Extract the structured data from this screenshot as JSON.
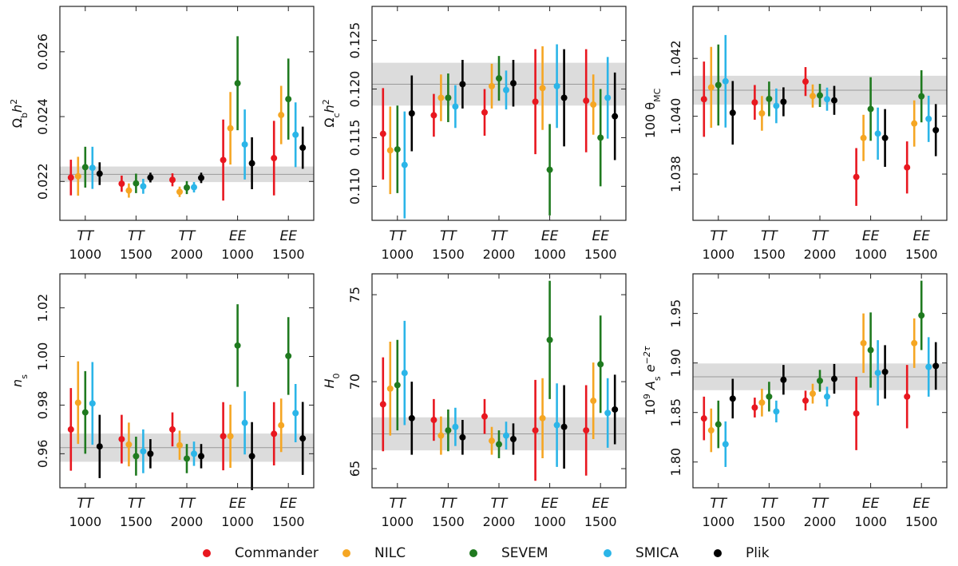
{
  "colors": {
    "Commander": "#e8171f",
    "NILC": "#f5a623",
    "SEVEM": "#1f7a1f",
    "SMICA": "#2bb5e8",
    "Plik": "#000000",
    "band": "#dcdcdc",
    "band_line": "#9a9a9a"
  },
  "legend": [
    "Commander",
    "NILC",
    "SEVEM",
    "SMICA",
    "Plik"
  ],
  "categories": [
    {
      "spec": "TT",
      "lmax": "1000"
    },
    {
      "spec": "TT",
      "lmax": "1500"
    },
    {
      "spec": "TT",
      "lmax": "2000"
    },
    {
      "spec": "EE",
      "lmax": "1000"
    },
    {
      "spec": "EE",
      "lmax": "1500"
    }
  ],
  "chart_data": [
    {
      "type": "scatter",
      "name": "omega-b",
      "ylabel_main": "Ω",
      "ylabel_sub": "b",
      "ylabel_rest": "h",
      "ylabel_sup": "2",
      "ylim": [
        0.0208,
        0.0274
      ],
      "yticks": [
        0.022,
        0.024,
        0.026
      ],
      "ytick_labels": [
        "0.022",
        "0.024",
        "0.026"
      ],
      "band": {
        "center": 0.02222,
        "half": 0.00024
      },
      "series": [
        {
          "name": "Commander",
          "values": [
            [
              0.02212,
              0.00055
            ],
            [
              0.02193,
              0.00025
            ],
            [
              0.02205,
              0.0002
            ],
            [
              0.02266,
              0.00125
            ],
            [
              0.02272,
              0.00115
            ]
          ]
        },
        {
          "name": "NILC",
          "values": [
            [
              0.02216,
              0.0006
            ],
            [
              0.02172,
              0.00022
            ],
            [
              0.02168,
              0.00016
            ],
            [
              0.02364,
              0.00112
            ],
            [
              0.02405,
              0.0009
            ]
          ]
        },
        {
          "name": "SEVEM",
          "values": [
            [
              0.02244,
              0.00063
            ],
            [
              0.02194,
              0.0003
            ],
            [
              0.02181,
              0.0002
            ],
            [
              0.02503,
              0.00145
            ],
            [
              0.02454,
              0.00125
            ]
          ]
        },
        {
          "name": "SMICA",
          "values": [
            [
              0.02242,
              0.00065
            ],
            [
              0.02185,
              0.00023
            ],
            [
              0.02182,
              0.00016
            ],
            [
              0.02314,
              0.00108
            ],
            [
              0.02344,
              0.001
            ]
          ]
        },
        {
          "name": "Plik",
          "values": [
            [
              0.02224,
              0.00035
            ],
            [
              0.02212,
              0.00015
            ],
            [
              0.02211,
              0.00016
            ],
            [
              0.02256,
              0.0008
            ],
            [
              0.02304,
              0.00065
            ]
          ]
        }
      ]
    },
    {
      "type": "scatter",
      "name": "omega-c",
      "ylabel_main": "Ω",
      "ylabel_sub": "c",
      "ylabel_rest": "h",
      "ylabel_sup": "2",
      "ylim": [
        0.1065,
        0.1285
      ],
      "yticks": [
        0.11,
        0.115,
        0.12,
        0.125
      ],
      "ytick_labels": [
        "0.110",
        "0.115",
        "0.120",
        "0.125"
      ],
      "band": {
        "center": 0.1205,
        "half": 0.0022
      },
      "series": [
        {
          "name": "Commander",
          "values": [
            [
              0.1154,
              0.0047
            ],
            [
              0.1173,
              0.0022
            ],
            [
              0.1176,
              0.0024
            ],
            [
              0.1187,
              0.0054
            ],
            [
              0.1188,
              0.0053
            ]
          ]
        },
        {
          "name": "NILC",
          "values": [
            [
              0.1137,
              0.0045
            ],
            [
              0.1191,
              0.0024
            ],
            [
              0.1203,
              0.0023
            ],
            [
              0.1201,
              0.0043
            ],
            [
              0.1184,
              0.0031
            ]
          ]
        },
        {
          "name": "SEVEM",
          "values": [
            [
              0.1138,
              0.0045
            ],
            [
              0.1191,
              0.0025
            ],
            [
              0.1211,
              0.0023
            ],
            [
              0.1117,
              0.0047
            ],
            [
              0.115,
              0.005
            ]
          ]
        },
        {
          "name": "SMICA",
          "values": [
            [
              0.1122,
              0.0055
            ],
            [
              0.1182,
              0.0022
            ],
            [
              0.1199,
              0.002
            ],
            [
              0.1203,
              0.0043
            ],
            [
              0.1191,
              0.0042
            ]
          ]
        },
        {
          "name": "Plik",
          "values": [
            [
              0.1175,
              0.0039
            ],
            [
              0.1205,
              0.0025
            ],
            [
              0.1206,
              0.0024
            ],
            [
              0.1191,
              0.005
            ],
            [
              0.1172,
              0.0045
            ]
          ]
        }
      ]
    },
    {
      "type": "scatter",
      "name": "theta-mc",
      "ylabel_main": "100 θ",
      "ylabel_sub": "MC",
      "ylabel_rest": "",
      "ylabel_sup": "",
      "ylim": [
        1.0364,
        1.0438
      ],
      "yticks": [
        1.038,
        1.04,
        1.042
      ],
      "ytick_labels": [
        "1.038",
        "1.040",
        "1.042"
      ],
      "band": {
        "center": 1.0409,
        "half": 0.0005
      },
      "series": [
        {
          "name": "Commander",
          "values": [
            [
              1.04059,
              0.0013
            ],
            [
              1.04048,
              0.0006
            ],
            [
              1.0412,
              0.0005
            ],
            [
              1.0379,
              0.001
            ],
            [
              1.03823,
              0.0009
            ]
          ]
        },
        {
          "name": "NILC",
          "values": [
            [
              1.041,
              0.0014
            ],
            [
              1.0401,
              0.0006
            ],
            [
              1.0407,
              0.0004
            ],
            [
              1.03925,
              0.0008
            ],
            [
              1.03975,
              0.0008
            ]
          ]
        },
        {
          "name": "SEVEM",
          "values": [
            [
              1.04108,
              0.0014
            ],
            [
              1.0406,
              0.0006
            ],
            [
              1.04072,
              0.0004
            ],
            [
              1.04025,
              0.0011
            ],
            [
              1.04069,
              0.0009
            ]
          ]
        },
        {
          "name": "SMICA",
          "values": [
            [
              1.04121,
              0.0016
            ],
            [
              1.04036,
              0.0006
            ],
            [
              1.04059,
              0.0004
            ],
            [
              1.0394,
              0.0009
            ],
            [
              1.03991,
              0.0008
            ]
          ]
        },
        {
          "name": "Plik",
          "values": [
            [
              1.04012,
              0.0011
            ],
            [
              1.0405,
              0.0005
            ],
            [
              1.04055,
              0.0005
            ],
            [
              1.03925,
              0.001
            ],
            [
              1.03952,
              0.0009
            ]
          ]
        }
      ]
    },
    {
      "type": "scatter",
      "name": "ns",
      "ylabel_main": "n",
      "ylabel_sub": "s",
      "ylabel_rest": "",
      "ylabel_sup": "",
      "ylim": [
        0.946,
        1.034
      ],
      "yticks": [
        0.96,
        0.98,
        1.0,
        1.02
      ],
      "ytick_labels": [
        "0.96",
        "0.98",
        "1.00",
        "1.02"
      ],
      "band": {
        "center": 0.9625,
        "half": 0.0058
      },
      "series": [
        {
          "name": "Commander",
          "values": [
            [
              0.97,
              0.017
            ],
            [
              0.966,
              0.01
            ],
            [
              0.97,
              0.007
            ],
            [
              0.9672,
              0.014
            ],
            [
              0.9682,
              0.013
            ]
          ]
        },
        {
          "name": "NILC",
          "values": [
            [
              0.981,
              0.017
            ],
            [
              0.9638,
              0.009
            ],
            [
              0.9635,
              0.006
            ],
            [
              0.9672,
              0.013
            ],
            [
              0.9717,
              0.011
            ]
          ]
        },
        {
          "name": "SEVEM",
          "values": [
            [
              0.977,
              0.017
            ],
            [
              0.959,
              0.008
            ],
            [
              0.958,
              0.006
            ],
            [
              1.0045,
              0.017
            ],
            [
              1.0002,
              0.016
            ]
          ]
        },
        {
          "name": "SMICA",
          "values": [
            [
              0.9807,
              0.017
            ],
            [
              0.961,
              0.009
            ],
            [
              0.96,
              0.005
            ],
            [
              0.9727,
              0.013
            ],
            [
              0.9767,
              0.012
            ]
          ]
        },
        {
          "name": "Plik",
          "values": [
            [
              0.963,
              0.013
            ],
            [
              0.96,
              0.006
            ],
            [
              0.959,
              0.005
            ],
            [
              0.959,
              0.014
            ],
            [
              0.9663,
              0.015
            ]
          ]
        }
      ]
    },
    {
      "type": "scatter",
      "name": "h0",
      "ylabel_main": "H",
      "ylabel_sub": "0",
      "ylabel_rest": "",
      "ylabel_sup": "",
      "ylim": [
        63.9,
        76.2
      ],
      "yticks": [
        65,
        70,
        75
      ],
      "ytick_labels": [
        "65",
        "70",
        "75"
      ],
      "band": {
        "center": 67.0,
        "half": 0.95
      },
      "series": [
        {
          "name": "Commander",
          "values": [
            [
              68.7,
              2.7
            ],
            [
              67.8,
              1.2
            ],
            [
              68.0,
              1.0
            ],
            [
              67.2,
              2.9
            ],
            [
              67.2,
              2.6
            ]
          ]
        },
        {
          "name": "NILC",
          "values": [
            [
              69.6,
              2.7
            ],
            [
              66.9,
              1.1
            ],
            [
              66.6,
              0.8
            ],
            [
              67.9,
              2.3
            ],
            [
              68.9,
              2.2
            ]
          ]
        },
        {
          "name": "SEVEM",
          "values": [
            [
              69.8,
              2.6
            ],
            [
              67.2,
              1.2
            ],
            [
              66.4,
              0.8
            ],
            [
              72.4,
              3.4
            ],
            [
              71.0,
              2.8
            ]
          ]
        },
        {
          "name": "SMICA",
          "values": [
            [
              70.5,
              3.0
            ],
            [
              67.4,
              1.1
            ],
            [
              66.9,
              0.8
            ],
            [
              67.5,
              2.4
            ],
            [
              68.2,
              2.0
            ]
          ]
        },
        {
          "name": "Plik",
          "values": [
            [
              67.9,
              2.1
            ],
            [
              66.8,
              1.0
            ],
            [
              66.7,
              0.9
            ],
            [
              67.4,
              2.4
            ],
            [
              68.4,
              2.0
            ]
          ]
        }
      ]
    },
    {
      "type": "scatter",
      "name": "as",
      "ylabel_main": "10",
      "ylabel_sup0": "9",
      "ylabel_tail": " A",
      "ylabel_sub": "s",
      "ylabel_rest": " e",
      "ylabel_sup": "−2τ",
      "ylim": [
        1.774,
        1.99
      ],
      "yticks": [
        1.8,
        1.85,
        1.9,
        1.95
      ],
      "ytick_labels": [
        "1.80",
        "1.85",
        "1.90",
        "1.95"
      ],
      "band": {
        "center": 1.886,
        "half": 0.0135
      },
      "series": [
        {
          "name": "Commander",
          "values": [
            [
              1.844,
              0.022
            ],
            [
              1.855,
              0.01
            ],
            [
              1.862,
              0.01
            ],
            [
              1.849,
              0.037
            ],
            [
              1.866,
              0.032
            ]
          ]
        },
        {
          "name": "NILC",
          "values": [
            [
              1.832,
              0.022
            ],
            [
              1.86,
              0.014
            ],
            [
              1.869,
              0.01
            ],
            [
              1.92,
              0.03
            ],
            [
              1.92,
              0.025
            ]
          ]
        },
        {
          "name": "SEVEM",
          "values": [
            [
              1.838,
              0.024
            ],
            [
              1.866,
              0.015
            ],
            [
              1.882,
              0.011
            ],
            [
              1.913,
              0.038
            ],
            [
              1.948,
              0.035
            ]
          ]
        },
        {
          "name": "SMICA",
          "values": [
            [
              1.818,
              0.023
            ],
            [
              1.851,
              0.011
            ],
            [
              1.866,
              0.01
            ],
            [
              1.89,
              0.033
            ],
            [
              1.896,
              0.03
            ]
          ]
        },
        {
          "name": "Plik",
          "values": [
            [
              1.864,
              0.02
            ],
            [
              1.883,
              0.015
            ],
            [
              1.884,
              0.015
            ],
            [
              1.891,
              0.027
            ],
            [
              1.897,
              0.024
            ]
          ]
        }
      ]
    }
  ]
}
